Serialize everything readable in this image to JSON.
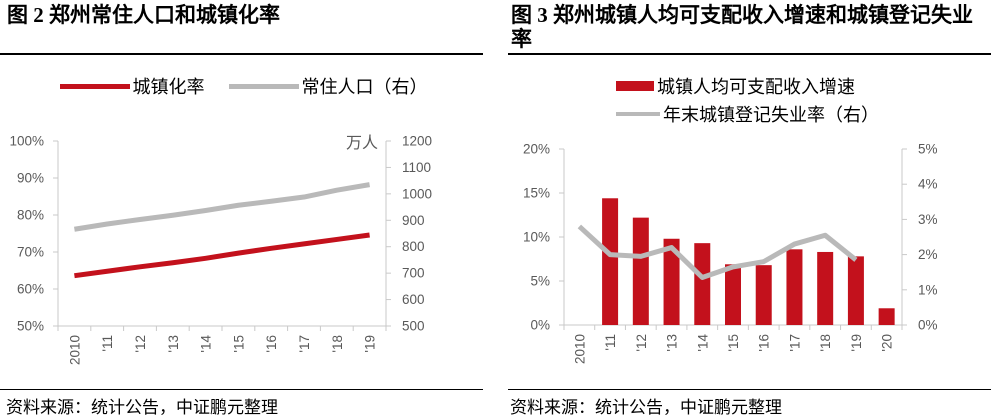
{
  "colors": {
    "red": "#C3111C",
    "gray": "#B9B9B9",
    "axis_line": "#C9C9C9",
    "tick_label": "#595959"
  },
  "panels": [
    {
      "source": "资料来源：统计公告，中证鹏元整理"
    },
    {
      "source": "资料来源：统计公告，中证鹏元整理"
    }
  ],
  "chart_data": [
    {
      "type": "line",
      "title": "图 2  郑州常住人口和城镇化率",
      "categories": [
        "2010",
        "'11",
        "'12",
        "'13",
        "'14",
        "'15",
        "'16",
        "'17",
        "'18",
        "'19"
      ],
      "series": [
        {
          "name": "城镇化率",
          "type": "line",
          "axis": "left",
          "color": "#C3111C",
          "values": [
            63.6,
            64.8,
            66.0,
            67.1,
            68.3,
            69.7,
            71.0,
            72.2,
            73.4,
            74.6
          ]
        },
        {
          "name": "常住人口（右）",
          "type": "line",
          "axis": "right",
          "color": "#B9B9B9",
          "values": [
            866,
            886,
            903,
            919,
            937,
            957,
            972,
            988,
            1014,
            1035
          ]
        }
      ],
      "left_axis": {
        "min": 50,
        "max": 100,
        "step": 10,
        "suffix": "%"
      },
      "right_axis": {
        "min": 500,
        "max": 1200,
        "step": 100,
        "suffix": "",
        "unit": "万人"
      },
      "legend_layout": "single-row",
      "legend_position": "top",
      "grid": false
    },
    {
      "type": "bar+line",
      "title": "图 3  郑州城镇人均可支配收入增速和城镇登记失业率",
      "categories": [
        "2010",
        "'11",
        "'12",
        "'13",
        "'14",
        "'15",
        "'16",
        "'17",
        "'18",
        "'19",
        "'20"
      ],
      "series": [
        {
          "name": "城镇人均可支配收入增速",
          "type": "bar",
          "axis": "left",
          "color": "#C3111C",
          "values": [
            null,
            14.4,
            12.2,
            9.8,
            9.3,
            6.9,
            6.8,
            8.6,
            8.3,
            7.8,
            1.9
          ]
        },
        {
          "name": "年末城镇登记失业率（右）",
          "type": "line",
          "axis": "right",
          "color": "#B9B9B9",
          "values": [
            2.8,
            2.0,
            1.95,
            2.2,
            1.35,
            1.65,
            1.8,
            2.3,
            2.55,
            1.85,
            null
          ]
        }
      ],
      "left_axis": {
        "min": 0,
        "max": 20,
        "step": 5,
        "suffix": "%"
      },
      "right_axis": {
        "min": 0,
        "max": 5,
        "step": 1,
        "suffix": "%"
      },
      "legend_layout": "stacked",
      "legend_position": "top",
      "grid": false
    }
  ]
}
